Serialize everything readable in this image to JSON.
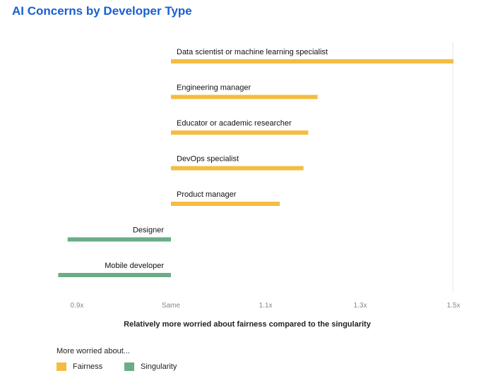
{
  "title": "AI Concerns by Developer Type",
  "xlabel": "Relatively more worried about fairness compared to the singularity",
  "legend": {
    "title": "More worried about...",
    "items": [
      {
        "label": "Fairness",
        "color": "#f5bc42"
      },
      {
        "label": "Singularity",
        "color": "#6aad86"
      }
    ]
  },
  "chart_data": {
    "type": "bar",
    "orientation": "horizontal",
    "title": "AI Concerns by Developer Type",
    "xlabel": "Relatively more worried about fairness compared to the singularity",
    "baseline": 1.0,
    "xlim": [
      0.85,
      1.5
    ],
    "xticks": [
      {
        "value": 0.9,
        "label": "0.9x"
      },
      {
        "value": 1.0,
        "label": "Same"
      },
      {
        "value": 1.1,
        "label": "1.1x"
      },
      {
        "value": 1.3,
        "label": "1.3x"
      },
      {
        "value": 1.5,
        "label": "1.5x"
      }
    ],
    "categories": [
      "Data scientist or machine learning specialist",
      "Engineering manager",
      "Educator or academic researcher",
      "DevOps specialist",
      "Product manager",
      "Designer",
      "Mobile developer"
    ],
    "values": [
      1.5,
      1.21,
      1.19,
      1.18,
      1.13,
      0.89,
      0.88
    ],
    "colors": {
      "fairness": "#f5bc42",
      "singularity": "#6aad86"
    }
  }
}
